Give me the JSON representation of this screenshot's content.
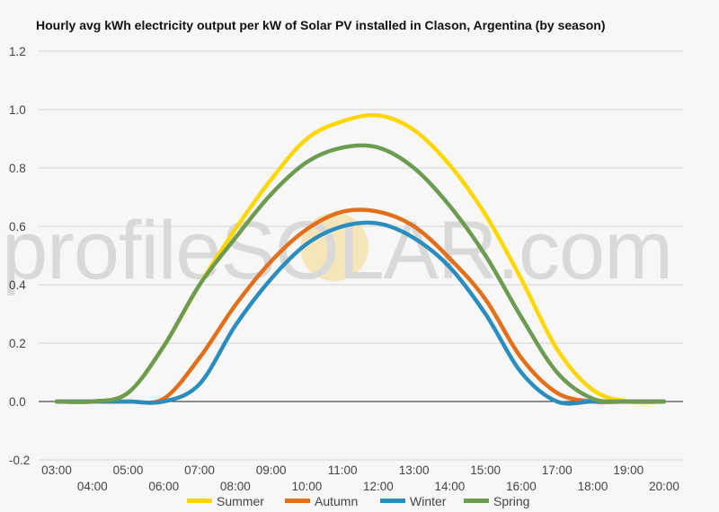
{
  "chart_data": {
    "type": "line",
    "title": "Hourly avg kWh electricity output per kW of Solar PV installed in Clason, Argentina (by season)",
    "xlabel": "",
    "ylabel": "",
    "ylim": [
      -0.2,
      1.2
    ],
    "yticks": [
      "-0.2",
      "0.0",
      "0.2",
      "0.4",
      "0.6",
      "0.8",
      "1.0",
      "1.2"
    ],
    "x": [
      "03:00",
      "04:00",
      "05:00",
      "06:00",
      "07:00",
      "08:00",
      "09:00",
      "10:00",
      "11:00",
      "12:00",
      "13:00",
      "14:00",
      "15:00",
      "16:00",
      "17:00",
      "18:00",
      "19:00",
      "20:00"
    ],
    "grid": true,
    "legend_position": "bottom",
    "series": [
      {
        "name": "Summer",
        "color": "#FFD700",
        "values": [
          0.0,
          0.0,
          0.03,
          0.19,
          0.4,
          0.59,
          0.76,
          0.9,
          0.96,
          0.98,
          0.93,
          0.81,
          0.64,
          0.42,
          0.18,
          0.04,
          0.0,
          0.0
        ]
      },
      {
        "name": "Autumn",
        "color": "#E26F1A",
        "values": [
          0.0,
          0.0,
          0.0,
          0.01,
          0.15,
          0.33,
          0.48,
          0.59,
          0.65,
          0.65,
          0.6,
          0.49,
          0.35,
          0.15,
          0.03,
          0.0,
          0.0,
          0.0
        ]
      },
      {
        "name": "Winter",
        "color": "#2B8CBE",
        "values": [
          0.0,
          0.0,
          0.0,
          0.0,
          0.06,
          0.26,
          0.42,
          0.54,
          0.6,
          0.61,
          0.56,
          0.46,
          0.3,
          0.1,
          0.0,
          0.0,
          0.0,
          0.0
        ]
      },
      {
        "name": "Spring",
        "color": "#6E9B52",
        "values": [
          0.0,
          0.0,
          0.03,
          0.19,
          0.4,
          0.56,
          0.71,
          0.82,
          0.87,
          0.87,
          0.8,
          0.67,
          0.5,
          0.29,
          0.1,
          0.01,
          0.0,
          0.0
        ]
      }
    ],
    "watermark": "profileSOLAR.com"
  }
}
